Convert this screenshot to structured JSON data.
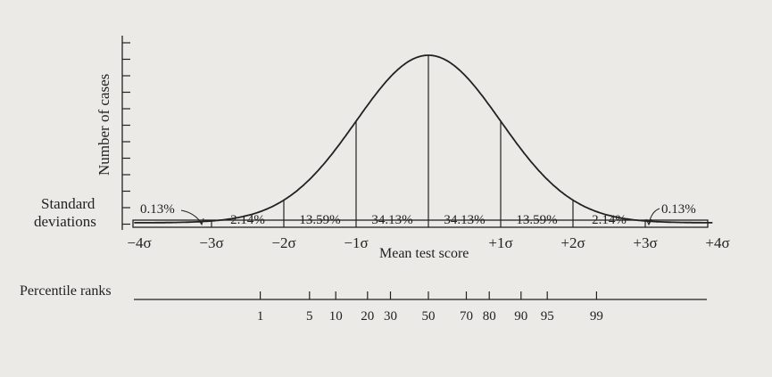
{
  "labels": {
    "y_axis": "Number of cases",
    "sd_row_line1": "Standard",
    "sd_row_line2": "deviations",
    "mean": "Mean test score",
    "percentile_row": "Percentile ranks"
  },
  "sigma_labels": [
    "−4σ",
    "−3σ",
    "−2σ",
    "−1σ",
    "+1σ",
    "+2σ",
    "+3σ",
    "+4σ"
  ],
  "area_percentages": [
    {
      "from": -3,
      "to": -2,
      "text": "2.14%"
    },
    {
      "from": -2,
      "to": -1,
      "text": "13.59%"
    },
    {
      "from": -1,
      "to": 0,
      "text": "34.13%"
    },
    {
      "from": 0,
      "to": 1,
      "text": "34.13%"
    },
    {
      "from": 1,
      "to": 2,
      "text": "13.59%"
    },
    {
      "from": 2,
      "to": 3,
      "text": "2.14%"
    }
  ],
  "tail_percentages": {
    "left": "0.13%",
    "right": "0.13%"
  },
  "percentile_ranks": [
    {
      "rank": 1,
      "text": "1"
    },
    {
      "rank": 5,
      "text": "5"
    },
    {
      "rank": 10,
      "text": "10"
    },
    {
      "rank": 20,
      "text": "20"
    },
    {
      "rank": 30,
      "text": "30"
    },
    {
      "rank": 50,
      "text": "50"
    },
    {
      "rank": 70,
      "text": "70"
    },
    {
      "rank": 80,
      "text": "80"
    },
    {
      "rank": 90,
      "text": "90"
    },
    {
      "rank": 95,
      "text": "95"
    },
    {
      "rank": 99,
      "text": "99"
    }
  ],
  "colors": {
    "ink": "#222222",
    "paper": "#ebeae7"
  }
}
